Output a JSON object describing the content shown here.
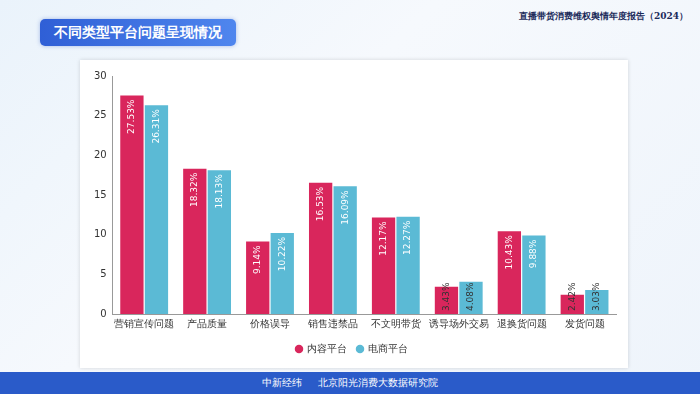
{
  "page": {
    "report_title": "直播带货消费维权舆情年度报告（2024）",
    "footer": [
      "中新经纬",
      "北京阳光消费大数据研究院"
    ]
  },
  "chart_data": {
    "type": "bar",
    "title": "不同类型平台问题呈现情况",
    "categories": [
      "营销宣传问题",
      "产品质量",
      "价格误导",
      "销售违禁品",
      "不文明带货",
      "诱导场外交易",
      "退换货问题",
      "发货问题"
    ],
    "series": [
      {
        "name": "内容平台",
        "color": "#d9265c",
        "values": [
          27.53,
          18.32,
          9.14,
          16.53,
          12.17,
          3.43,
          10.43,
          2.42
        ],
        "value_labels": [
          "27.53%",
          "18.32%",
          "9.14%",
          "16.53%",
          "12.17%",
          "3.43%",
          "10.43%",
          "2.42%"
        ]
      },
      {
        "name": "电商平台",
        "color": "#5bbad5",
        "values": [
          26.31,
          18.13,
          10.22,
          16.09,
          12.27,
          4.08,
          9.88,
          3.03
        ],
        "value_labels": [
          "26.31%",
          "18.13%",
          "10.22%",
          "16.09%",
          "12.27%",
          "4.08%",
          "9.88%",
          "3.03%"
        ]
      }
    ],
    "ylim": [
      0,
      30
    ],
    "yticks": [
      0,
      5,
      10,
      15,
      20,
      25,
      30
    ],
    "grid": false,
    "legend": "bottom",
    "data_labels": true
  }
}
